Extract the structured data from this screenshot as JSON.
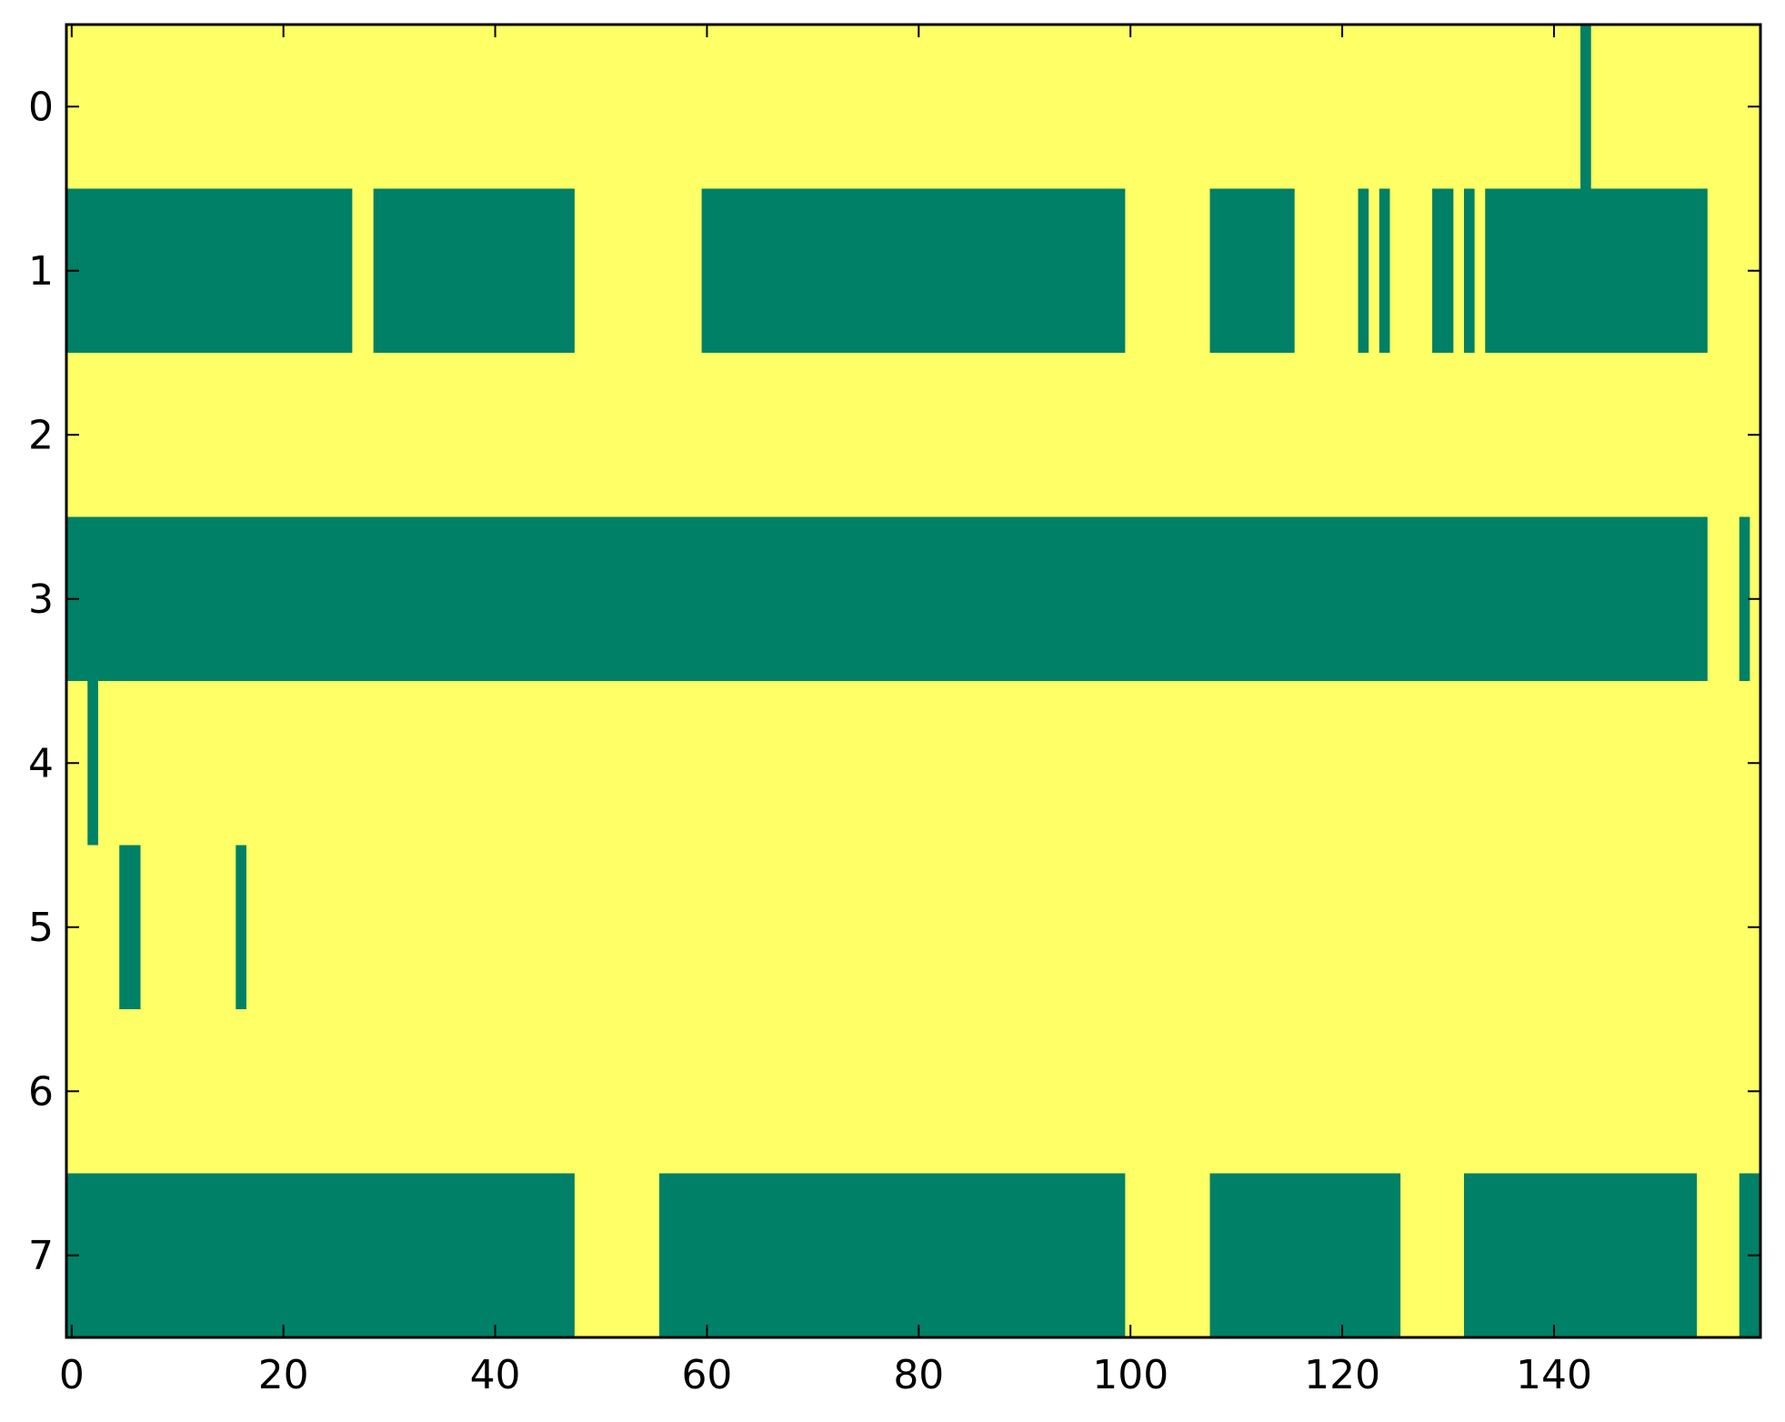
{
  "chart_data": {
    "type": "heatmap",
    "title": "",
    "xlabel": "",
    "ylabel": "",
    "xlim": [
      -0.5,
      159.5
    ],
    "ylim": [
      7.5,
      -0.5
    ],
    "x_ticks": [
      0,
      20,
      40,
      60,
      80,
      100,
      120,
      140
    ],
    "x_tick_labels": [
      "0",
      "20",
      "40",
      "60",
      "80",
      "100",
      "120",
      "140"
    ],
    "y_ticks": [
      0,
      1,
      2,
      3,
      4,
      5,
      6,
      7
    ],
    "y_tick_labels": [
      "0",
      "1",
      "2",
      "3",
      "4",
      "5",
      "6",
      "7"
    ],
    "grid": false,
    "colors": {
      "low": "#ffff66",
      "high": "#008066"
    },
    "rows": [
      {
        "row": 0,
        "high_runs": [
          [
            143,
            143
          ]
        ]
      },
      {
        "row": 1,
        "high_runs": [
          [
            0,
            26
          ],
          [
            29,
            47
          ],
          [
            60,
            99
          ],
          [
            108,
            115
          ],
          [
            122,
            122
          ],
          [
            124,
            124
          ],
          [
            129,
            130
          ],
          [
            132,
            132
          ],
          [
            134,
            154
          ]
        ]
      },
      {
        "row": 2,
        "high_runs": []
      },
      {
        "row": 3,
        "high_runs": [
          [
            0,
            154
          ],
          [
            158,
            158
          ]
        ]
      },
      {
        "row": 4,
        "high_runs": [
          [
            2,
            2
          ]
        ]
      },
      {
        "row": 5,
        "high_runs": [
          [
            5,
            6
          ],
          [
            16,
            16
          ]
        ]
      },
      {
        "row": 6,
        "high_runs": []
      },
      {
        "row": 7,
        "high_runs": [
          [
            0,
            47
          ],
          [
            56,
            99
          ],
          [
            108,
            125
          ],
          [
            132,
            153
          ],
          [
            158,
            159
          ]
        ]
      }
    ]
  }
}
